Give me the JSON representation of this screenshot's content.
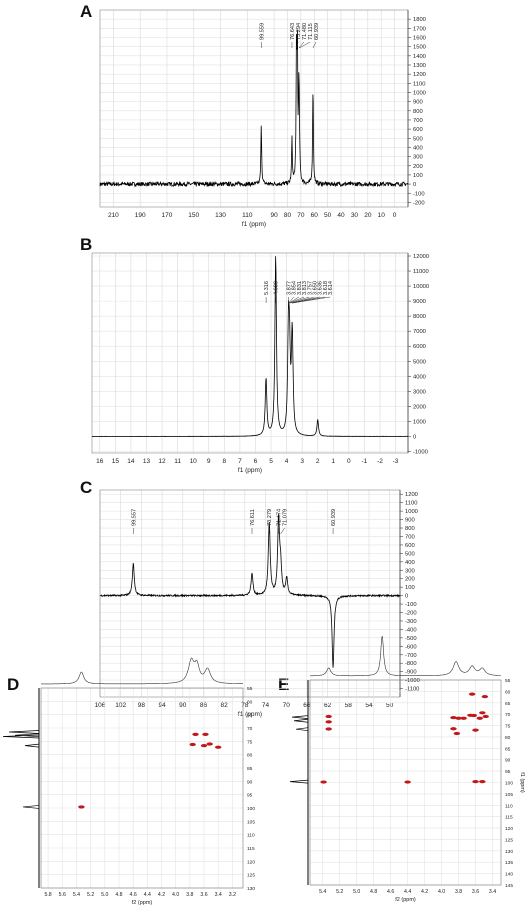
{
  "chart_data": [
    {
      "panel": "A",
      "type": "line",
      "description_units": "13C NMR",
      "xlabel": "f1 (ppm)",
      "xlim": [
        220,
        -10
      ],
      "xticks": [
        210,
        190,
        170,
        150,
        130,
        110,
        90,
        80,
        70,
        60,
        50,
        40,
        30,
        20,
        10,
        0
      ],
      "ylim": [
        -250,
        1900
      ],
      "yticks": [
        1800,
        1700,
        1600,
        1500,
        1400,
        1300,
        1200,
        1100,
        1000,
        900,
        800,
        700,
        600,
        500,
        400,
        300,
        200,
        100,
        0,
        -100,
        -200
      ],
      "peak_labels": [
        "99.559",
        "76.643",
        "73.294",
        "71.480",
        "71.115",
        "60.939"
      ],
      "peaks": [
        {
          "x": 99.56,
          "y": 650
        },
        {
          "x": 76.64,
          "y": 480
        },
        {
          "x": 73.29,
          "y": 1330
        },
        {
          "x": 72.6,
          "y": 1360
        },
        {
          "x": 71.48,
          "y": 900
        },
        {
          "x": 71.12,
          "y": 330
        },
        {
          "x": 60.94,
          "y": 1080
        }
      ],
      "grid": true
    },
    {
      "panel": "B",
      "type": "line",
      "description_units": "1H NMR",
      "xlabel": "f1 (ppm)",
      "xlim": [
        16.5,
        -3.8
      ],
      "xticks": [
        16,
        15,
        14,
        13,
        12,
        11,
        10,
        9,
        8,
        7,
        6,
        5,
        4,
        3,
        2,
        1,
        0,
        -1,
        -2,
        -3
      ],
      "ylim": [
        -1100,
        12200
      ],
      "yticks": [
        12000,
        11000,
        10000,
        9000,
        8000,
        7000,
        6000,
        5000,
        4000,
        3000,
        2000,
        1000,
        0,
        -1000
      ],
      "peak_labels": [
        "5.316",
        "4.699",
        "3.877",
        "3.854",
        "3.831",
        "3.813",
        "3.757",
        "3.650",
        "3.636",
        "3.618",
        "3.614"
      ],
      "peaks": [
        {
          "x": 5.32,
          "y": 3800
        },
        {
          "x": 4.7,
          "y": 11900
        },
        {
          "x": 3.88,
          "y": 6400
        },
        {
          "x": 3.81,
          "y": 4600
        },
        {
          "x": 3.65,
          "y": 4100
        },
        {
          "x": 3.62,
          "y": 3000
        },
        {
          "x": 2.0,
          "y": 1100
        }
      ],
      "grid": true
    },
    {
      "panel": "C",
      "type": "line",
      "description_units": "DEPT-135",
      "xlabel": "f1 (ppm)",
      "xlim": [
        106,
        48
      ],
      "xticks": [
        106,
        102,
        98,
        94,
        90,
        86,
        82,
        78,
        74,
        70,
        66,
        62,
        58,
        54,
        50
      ],
      "ylim": [
        -1200,
        1250
      ],
      "yticks": [
        1200,
        1100,
        1000,
        900,
        800,
        700,
        600,
        500,
        400,
        300,
        200,
        100,
        0,
        -100,
        -200,
        -300,
        -400,
        -500,
        -600,
        -700,
        -800,
        -900,
        -1000,
        -1100
      ],
      "peak_labels": [
        "99.557",
        "76.611",
        "73.279",
        "71.474",
        "71.079",
        "60.939"
      ],
      "peaks": [
        {
          "x": 99.56,
          "y": 380
        },
        {
          "x": 76.61,
          "y": 260
        },
        {
          "x": 73.28,
          "y": 860
        },
        {
          "x": 71.47,
          "y": 880
        },
        {
          "x": 71.08,
          "y": 310
        },
        {
          "x": 69.9,
          "y": 200
        },
        {
          "x": 60.94,
          "y": -860
        }
      ],
      "grid": true
    },
    {
      "panel": "D",
      "type": "heatmap",
      "description_units": "HSQC",
      "xlabel": "f2 (ppm)",
      "ylabel": "",
      "xlim": [
        5.9,
        3.05
      ],
      "xticks": [
        5.8,
        5.6,
        5.4,
        5.2,
        5.0,
        4.8,
        4.6,
        4.4,
        4.2,
        4.0,
        3.8,
        3.6,
        3.4,
        3.2
      ],
      "ylim": [
        55,
        130
      ],
      "yticks": [
        55,
        60,
        65,
        70,
        75,
        80,
        85,
        90,
        95,
        100,
        105,
        110,
        115,
        120,
        125,
        130
      ],
      "cross_peaks": [
        {
          "x": 3.72,
          "y": 72.4
        },
        {
          "x": 3.58,
          "y": 72.4
        },
        {
          "x": 3.76,
          "y": 76.2
        },
        {
          "x": 3.6,
          "y": 76.6
        },
        {
          "x": 3.52,
          "y": 76.0
        },
        {
          "x": 3.4,
          "y": 77.2
        },
        {
          "x": 5.33,
          "y": 99.6
        }
      ],
      "color": "#c0191b"
    },
    {
      "panel": "E",
      "type": "heatmap",
      "description_units": "HMBC",
      "xlabel": "f2 (ppm)",
      "ylabel": "f1 (ppm)",
      "xlim": [
        5.55,
        3.3
      ],
      "xticks": [
        5.4,
        5.2,
        5.0,
        4.8,
        4.6,
        4.4,
        4.2,
        4.0,
        3.8,
        3.6,
        3.4
      ],
      "ylim": [
        55,
        145
      ],
      "yticks": [
        55,
        60,
        65,
        70,
        75,
        80,
        85,
        90,
        95,
        100,
        105,
        110,
        115,
        120,
        125,
        130,
        135,
        140,
        145
      ],
      "cross_peaks": [
        {
          "x": 5.33,
          "y": 71.0
        },
        {
          "x": 5.33,
          "y": 73.4
        },
        {
          "x": 5.33,
          "y": 76.5
        },
        {
          "x": 3.86,
          "y": 71.5
        },
        {
          "x": 3.8,
          "y": 71.8
        },
        {
          "x": 3.74,
          "y": 71.8
        },
        {
          "x": 3.66,
          "y": 70.5
        },
        {
          "x": 3.62,
          "y": 70.6
        },
        {
          "x": 3.55,
          "y": 71.8
        },
        {
          "x": 3.52,
          "y": 69.4
        },
        {
          "x": 3.48,
          "y": 71.0
        },
        {
          "x": 3.6,
          "y": 77.0
        },
        {
          "x": 3.86,
          "y": 76.4
        },
        {
          "x": 3.82,
          "y": 78.5
        },
        {
          "x": 3.6,
          "y": 99.6
        },
        {
          "x": 3.52,
          "y": 99.6
        },
        {
          "x": 3.49,
          "y": 62.3
        },
        {
          "x": 3.64,
          "y": 61.2
        },
        {
          "x": 5.39,
          "y": 99.8
        },
        {
          "x": 4.4,
          "y": 99.8
        }
      ],
      "color": "#c0191b"
    }
  ],
  "panels": {
    "a": "A",
    "b": "B",
    "c": "C",
    "d": "D",
    "e": "E"
  }
}
